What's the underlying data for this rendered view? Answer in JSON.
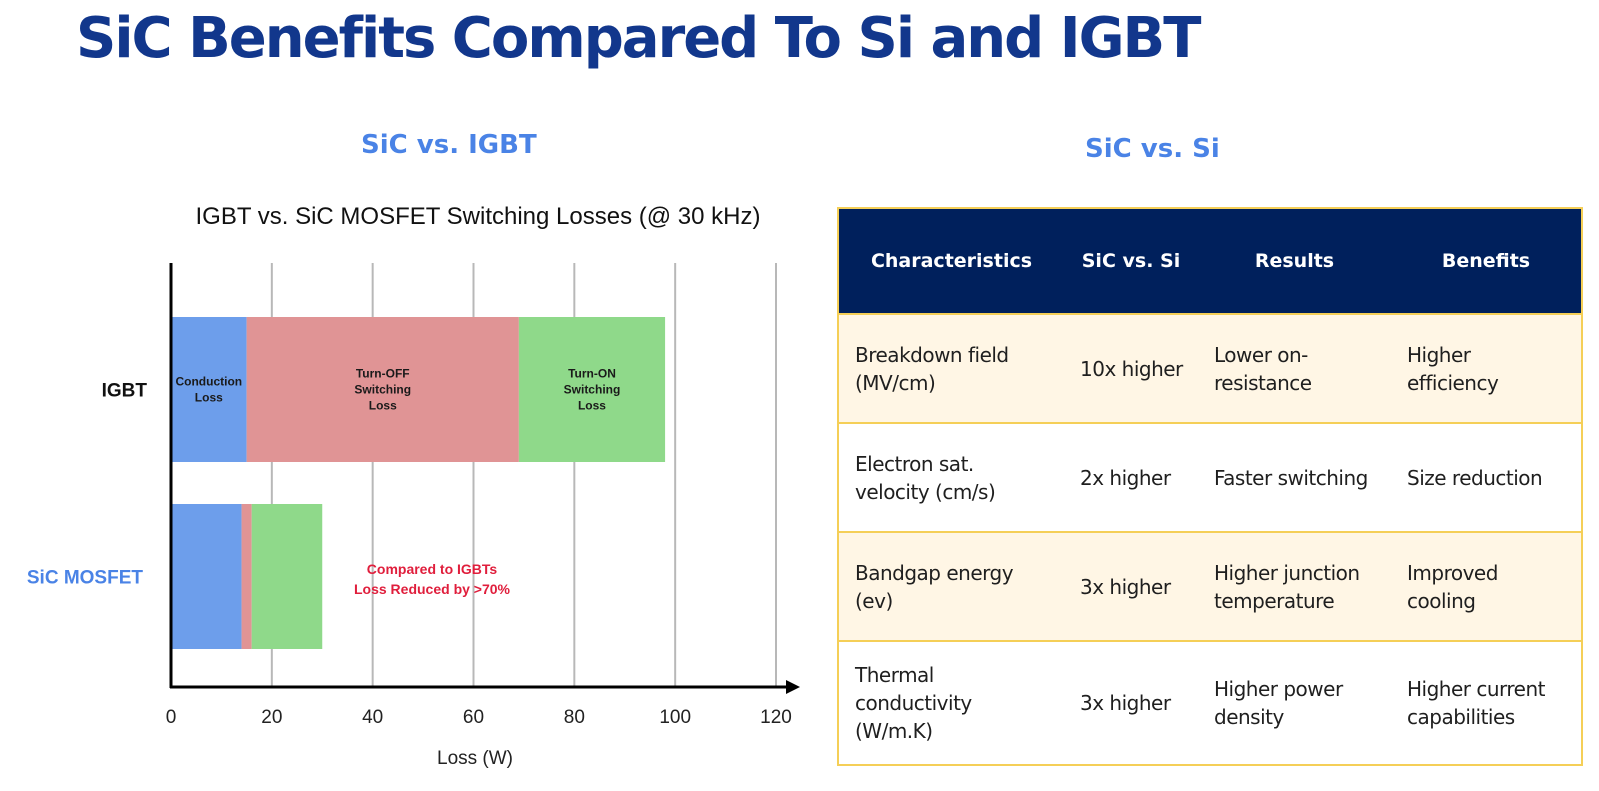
{
  "main_title": "SiC Benefits Compared To Si and IGBT",
  "left_heading": "SiC vs. IGBT",
  "right_heading": "SiC vs. Si",
  "colors": {
    "title": "#12378c",
    "heading": "#4a83e6",
    "conduction": "#6d9eeb",
    "turn_off": "#e09495",
    "turn_on": "#8fd98a",
    "annotation": "#e01e3c",
    "sic_label": "#4a83e6",
    "table_header": "#00205c",
    "table_border": "#f5cf57",
    "table_row_alt": "#fff6e5"
  },
  "chart_data": {
    "type": "bar",
    "orientation": "horizontal",
    "stacked": true,
    "title": "IGBT vs. SiC MOSFET Switching Losses (@ 30 kHz)",
    "xlabel": "Loss (W)",
    "xlim": [
      0,
      120
    ],
    "xticks": [
      0,
      20,
      40,
      60,
      80,
      100,
      120
    ],
    "grid": true,
    "categories": [
      "IGBT",
      "SiC MOSFET"
    ],
    "series": [
      {
        "key": "conduction",
        "segment_label": [
          "Conduction",
          "Loss"
        ],
        "values": [
          15,
          14
        ]
      },
      {
        "key": "turn_off",
        "segment_label": [
          "Turn-OFF",
          "Switching",
          "Loss"
        ],
        "values": [
          54,
          2
        ]
      },
      {
        "key": "turn_on",
        "segment_label": [
          "Turn-ON",
          "Switching",
          "Loss"
        ],
        "values": [
          29,
          14
        ]
      }
    ],
    "annotation": [
      "Compared to IGBTs",
      "Loss Reduced by >70%"
    ]
  },
  "table": {
    "headers": [
      "Characteristics",
      "SiC vs. Si",
      "Results",
      "Benefits"
    ],
    "rows": [
      [
        [
          "Breakdown field",
          "(MV/cm)"
        ],
        [
          "10x higher"
        ],
        [
          "Lower on-",
          "resistance"
        ],
        [
          "Higher",
          "efficiency"
        ]
      ],
      [
        [
          "Electron sat.",
          "velocity (cm/s)"
        ],
        [
          "2x higher"
        ],
        [
          "Faster switching"
        ],
        [
          "Size reduction"
        ]
      ],
      [
        [
          "Bandgap energy",
          "(ev)"
        ],
        [
          "3x higher"
        ],
        [
          "Higher junction",
          "temperature"
        ],
        [
          "Improved",
          "cooling"
        ]
      ],
      [
        [
          "Thermal",
          "conductivity",
          "(W/m.K)"
        ],
        [
          "3x higher"
        ],
        [
          "Higher power",
          "density"
        ],
        [
          "Higher current",
          "capabilities"
        ]
      ]
    ]
  }
}
